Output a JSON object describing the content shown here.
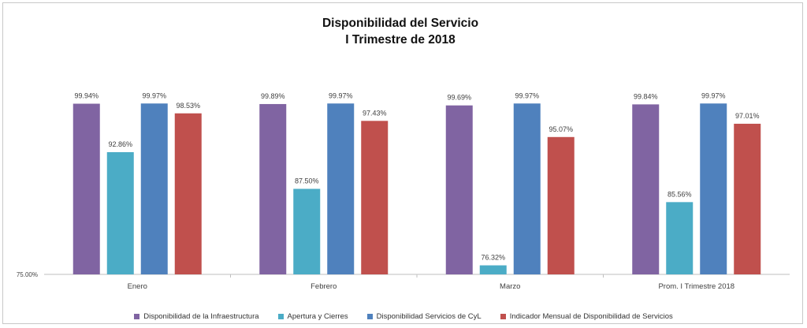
{
  "chart_data": {
    "type": "bar",
    "title": "Disponibilidad del Servicio",
    "subtitle": "I Trimestre de 2018",
    "categories": [
      "Enero",
      "Febrero",
      "Marzo",
      "Prom. I Trimestre 2018"
    ],
    "ylim": [
      75,
      100
    ],
    "y_min_label": "75.00%",
    "grid": false,
    "legend_position": "bottom",
    "series": [
      {
        "name": "Disponibilidad de la Infraestructura",
        "color": "#8064a2",
        "values": [
          99.94,
          99.89,
          99.69,
          99.84
        ],
        "labels": [
          "99.94%",
          "99.89%",
          "99.69%",
          "99.84%"
        ]
      },
      {
        "name": "Apertura y Cierres",
        "color": "#4bacc6",
        "values": [
          92.86,
          87.5,
          76.32,
          85.56
        ],
        "labels": [
          "92.86%",
          "87.50%",
          "76.32%",
          "85.56%"
        ]
      },
      {
        "name": "Disponibilidad Servicios de CyL",
        "color": "#4f81bd",
        "values": [
          99.97,
          99.97,
          99.97,
          99.97
        ],
        "labels": [
          "99.97%",
          "99.97%",
          "99.97%",
          "99.97%"
        ]
      },
      {
        "name": "Indicador Mensual de Disponibilidad de Servicios",
        "color": "#c0504d",
        "values": [
          98.53,
          97.43,
          95.07,
          97.01
        ],
        "labels": [
          "98.53%",
          "97.43%",
          "95.07%",
          "97.01%"
        ]
      }
    ]
  }
}
